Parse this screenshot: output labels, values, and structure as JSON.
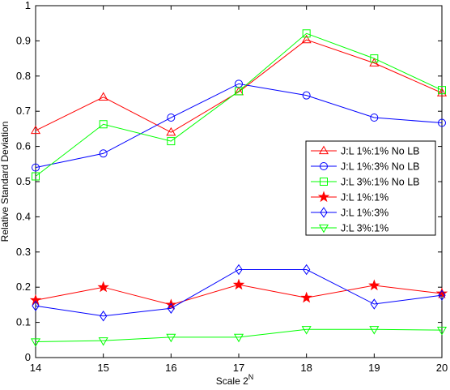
{
  "chart_data": {
    "type": "line",
    "xlabel": "Scale 2",
    "xlabel_superscript": "N",
    "ylabel": "Relative Standard Deviation",
    "x": [
      14,
      15,
      16,
      17,
      18,
      19,
      20
    ],
    "xlim": [
      14,
      20
    ],
    "ylim": [
      0,
      1
    ],
    "xticks": [
      "14",
      "15",
      "16",
      "17",
      "18",
      "19",
      "20"
    ],
    "yticks": [
      "0",
      "0.1",
      "0.2",
      "0.3",
      "0.4",
      "0.5",
      "0.6",
      "0.7",
      "0.8",
      "0.9",
      "1"
    ],
    "grid": false,
    "legend_position": "right",
    "series": [
      {
        "name": "J:L 1%:1% No LB",
        "color": "#ff0000",
        "marker": "triangle",
        "values": [
          0.645,
          0.74,
          0.64,
          0.755,
          0.903,
          0.837,
          0.752
        ]
      },
      {
        "name": "J:L 1%:3% No LB",
        "color": "#0000ff",
        "marker": "circle",
        "values": [
          0.54,
          0.58,
          0.682,
          0.778,
          0.745,
          0.682,
          0.667
        ]
      },
      {
        "name": "J:L 3%:1% No LB",
        "color": "#00ff00",
        "marker": "square",
        "values": [
          0.515,
          0.663,
          0.615,
          0.757,
          0.921,
          0.85,
          0.76
        ]
      },
      {
        "name": "J:L 1%:1%",
        "color": "#ff0000",
        "marker": "star",
        "values": [
          0.163,
          0.2,
          0.15,
          0.207,
          0.17,
          0.205,
          0.182
        ]
      },
      {
        "name": "J:L 1%:3%",
        "color": "#0000ff",
        "marker": "diamond",
        "values": [
          0.147,
          0.118,
          0.14,
          0.25,
          0.25,
          0.152,
          0.177
        ]
      },
      {
        "name": "J:L 3%:1%",
        "color": "#00ff00",
        "marker": "triangle-down",
        "values": [
          0.045,
          0.048,
          0.058,
          0.058,
          0.08,
          0.08,
          0.078
        ]
      }
    ]
  }
}
